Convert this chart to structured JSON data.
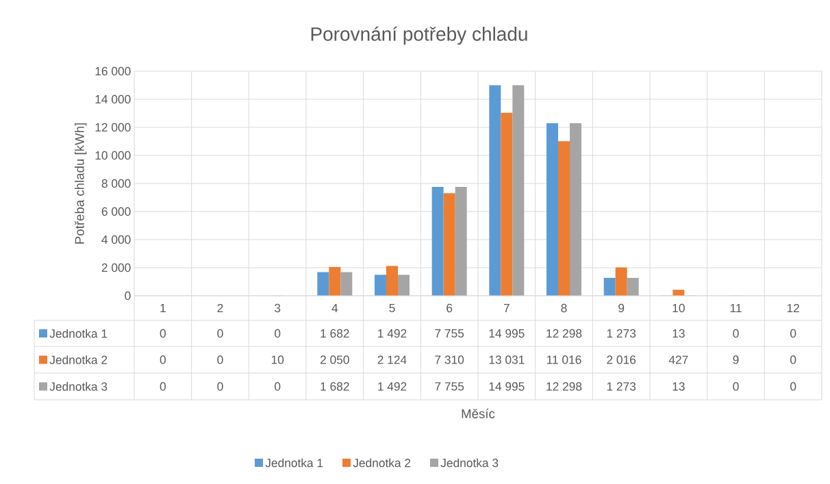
{
  "chart_data": {
    "type": "bar",
    "title": "Porovnání potřeby chladu",
    "annotations": [
      "Měsíc"
    ],
    "ylabel": "Potřeba chladu [kWh]",
    "categories": [
      "1",
      "2",
      "3",
      "4",
      "5",
      "6",
      "7",
      "8",
      "9",
      "10",
      "11",
      "12"
    ],
    "series": [
      {
        "name": "Jednotka 1",
        "color": "#5b9bd5",
        "values": [
          0,
          0,
          0,
          1682,
          1492,
          7755,
          14995,
          12298,
          1273,
          13,
          0,
          0
        ],
        "value_labels": [
          "0",
          "0",
          "0",
          "1 682",
          "1 492",
          "7 755",
          "14 995",
          "12 298",
          "1 273",
          "13",
          "0",
          "0"
        ]
      },
      {
        "name": "Jednotka 2",
        "color": "#ed7d31",
        "values": [
          0,
          0,
          10,
          2050,
          2124,
          7310,
          13031,
          11016,
          2016,
          427,
          9,
          0
        ],
        "value_labels": [
          "0",
          "0",
          "10",
          "2 050",
          "2 124",
          "7 310",
          "13 031",
          "11 016",
          "2 016",
          "427",
          "9",
          "0"
        ]
      },
      {
        "name": "Jednotka 3",
        "color": "#a5a5a5",
        "values": [
          0,
          0,
          0,
          1682,
          1492,
          7755,
          14995,
          12298,
          1273,
          13,
          0,
          0
        ],
        "value_labels": [
          "0",
          "0",
          "0",
          "1 682",
          "1 492",
          "7 755",
          "14 995",
          "12 298",
          "1 273",
          "13",
          "0",
          "0"
        ]
      }
    ],
    "ylim": [
      0,
      16000
    ],
    "yticks": [
      0,
      {
        "value": 2000,
        "label": "2 000"
      },
      {
        "value": 4000,
        "label": "4 000"
      },
      {
        "value": 6000,
        "label": "6 000"
      },
      {
        "value": 8000,
        "label": "8 000"
      },
      {
        "value": 10000,
        "label": "10 000"
      },
      {
        "value": 12000,
        "label": "12 000"
      },
      {
        "value": 14000,
        "label": "14 000"
      },
      {
        "value": 16000,
        "label": "16 000"
      }
    ],
    "grid": true,
    "legend": "bottom"
  }
}
